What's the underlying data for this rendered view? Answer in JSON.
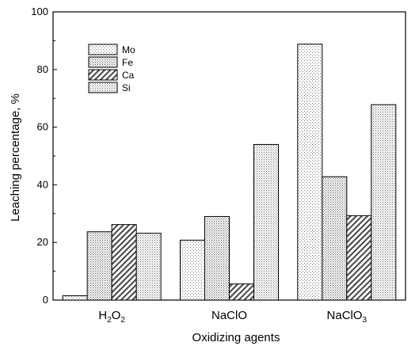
{
  "chart_data": {
    "type": "bar",
    "xlabel": "Oxidizing agents",
    "ylabel": "Leaching percentage, %",
    "categories": [
      {
        "label": "H2O2",
        "parts": [
          [
            "H",
            ""
          ],
          [
            "2",
            "sub"
          ],
          [
            "O",
            ""
          ],
          [
            "2",
            "sub"
          ]
        ]
      },
      {
        "label": "NaClO",
        "parts": [
          [
            "NaClO",
            ""
          ]
        ]
      },
      {
        "label": "NaClO3",
        "parts": [
          [
            "NaClO",
            ""
          ],
          [
            "3",
            "sub"
          ]
        ]
      }
    ],
    "series": [
      {
        "name": "Mo",
        "values": [
          1.5,
          20.8,
          88.8
        ],
        "pattern": "dots-light"
      },
      {
        "name": "Fe",
        "values": [
          23.7,
          29.0,
          42.8
        ],
        "pattern": "dots-dense"
      },
      {
        "name": "Ca",
        "values": [
          26.2,
          5.6,
          29.3
        ],
        "pattern": "hatch"
      },
      {
        "name": "Si",
        "values": [
          23.2,
          54.0,
          67.8
        ],
        "pattern": "dots-medium"
      }
    ],
    "ylim": [
      0,
      100
    ],
    "yticks": [
      0,
      20,
      40,
      60,
      80,
      100
    ],
    "grid": false,
    "legend_position": "top-left"
  }
}
